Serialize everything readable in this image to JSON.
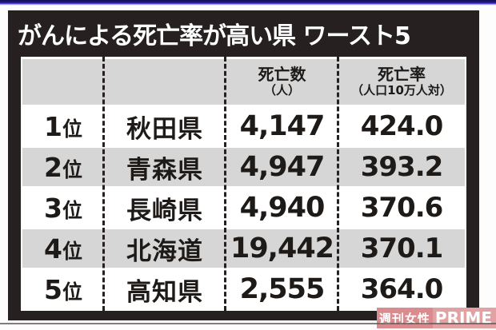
{
  "title": "がんによる死亡率が高い県 ワースト5",
  "table": {
    "headers": {
      "rank": "",
      "prefecture": "",
      "deaths_line1": "死亡数",
      "deaths_line2": "（人）",
      "rate_line1": "死亡率",
      "rate_line2": "（人口10万人対）"
    },
    "rows": [
      {
        "rank_num": "1",
        "rank_suffix": "位",
        "prefecture": "秋田県",
        "deaths": "4,147",
        "rate": "424.0"
      },
      {
        "rank_num": "2",
        "rank_suffix": "位",
        "prefecture": "青森県",
        "deaths": "4,947",
        "rate": "393.2"
      },
      {
        "rank_num": "3",
        "rank_suffix": "位",
        "prefecture": "長崎県",
        "deaths": "4,940",
        "rate": "370.6"
      },
      {
        "rank_num": "4",
        "rank_suffix": "位",
        "prefecture": "北海道",
        "deaths": "19,442",
        "rate": "370.1"
      },
      {
        "rank_num": "5",
        "rank_suffix": "位",
        "prefecture": "高知県",
        "deaths": "2,555",
        "rate": "364.0"
      }
    ]
  },
  "watermark": {
    "kanji": "週刊女性",
    "latin": "PRIME"
  },
  "colors": {
    "panel_black": "#262020",
    "row_gray": "#d6d6d6",
    "row_white": "#ffffff",
    "top_line_blue": "#1c1480",
    "watermark_pink_dark": "#d98b8d",
    "watermark_pink_light": "#e2a2a3",
    "bottom_line_gray": "#5f5b58"
  },
  "chart_data": {
    "type": "table",
    "title": "がんによる死亡率が高い県 ワースト5",
    "columns": [
      "",
      "",
      "死亡数（人）",
      "死亡率（人口10万人対）"
    ],
    "rows": [
      [
        "1位",
        "秋田県",
        4147,
        424.0
      ],
      [
        "2位",
        "青森県",
        4947,
        393.2
      ],
      [
        "3位",
        "長崎県",
        4940,
        370.6
      ],
      [
        "4位",
        "北海道",
        19442,
        370.1
      ],
      [
        "5位",
        "高知県",
        2555,
        364.0
      ]
    ],
    "legend_position": "none",
    "grid": "dashed-column-dividers"
  }
}
